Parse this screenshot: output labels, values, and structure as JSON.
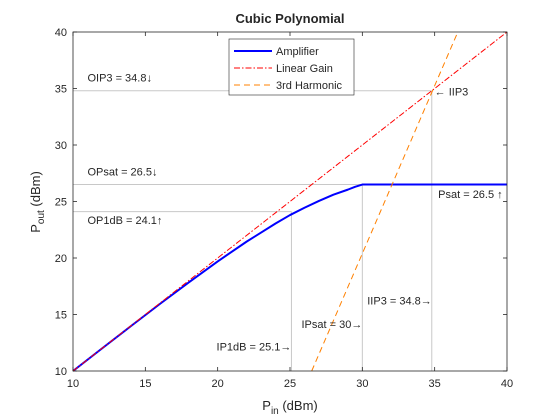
{
  "chart_data": {
    "type": "line",
    "title": "Cubic Polynomial",
    "xlabel": {
      "main": "P",
      "sub": "in",
      "rest": " (dBm)"
    },
    "ylabel": {
      "main": "P",
      "sub": "out",
      "rest": " (dBm)"
    },
    "xlim": [
      10,
      40
    ],
    "ylim": [
      10,
      40
    ],
    "xticks": [
      "10",
      "15",
      "20",
      "25",
      "30",
      "35",
      "40"
    ],
    "yticks": [
      "10",
      "15",
      "20",
      "25",
      "30",
      "35",
      "40"
    ],
    "grid": false,
    "legend_position": "top-center",
    "series": [
      {
        "name": "Amplifier",
        "color": "#0000ff",
        "style": "solid",
        "points": [
          [
            10,
            10
          ],
          [
            12,
            11.99
          ],
          [
            14,
            13.97
          ],
          [
            16,
            15.93
          ],
          [
            18,
            17.84
          ],
          [
            20,
            19.7
          ],
          [
            22,
            21.45
          ],
          [
            24,
            23.05
          ],
          [
            25,
            23.8
          ],
          [
            26,
            24.45
          ],
          [
            27,
            25.05
          ],
          [
            28,
            25.6
          ],
          [
            29,
            26.05
          ],
          [
            29.5,
            26.3
          ],
          [
            30,
            26.5
          ],
          [
            40,
            26.5
          ]
        ]
      },
      {
        "name": "Linear Gain",
        "color": "#ff0000",
        "style": "dashdot",
        "points": [
          [
            10,
            10
          ],
          [
            40,
            40
          ]
        ]
      },
      {
        "name": "3rd Harmonic",
        "color": "#ff8000",
        "style": "dashed",
        "points": [
          [
            26.5,
            10
          ],
          [
            36.6,
            40
          ]
        ]
      }
    ],
    "reference_lines": {
      "color": "#c8c8c8",
      "vertical": [
        {
          "x": 25.1,
          "y_from": 10,
          "y_to": 24.1
        },
        {
          "x": 30,
          "y_from": 10,
          "y_to": 26.5
        },
        {
          "x": 34.8,
          "y_from": 10,
          "y_to": 34.8
        }
      ],
      "horizontal": [
        {
          "y": 24.1,
          "x_from": 10,
          "x_to": 25.1
        },
        {
          "y": 26.5,
          "x_from": 10,
          "x_to": 40
        },
        {
          "y": 34.8,
          "x_from": 10,
          "x_to": 34.8
        }
      ]
    },
    "annotations": [
      {
        "text": "OIP3 = 34.8↓",
        "x": 11,
        "y": 35.6,
        "anchor": "start"
      },
      {
        "text": "OPsat = 26.5↓",
        "x": 11,
        "y": 27.3,
        "anchor": "start"
      },
      {
        "text": "OP1dB = 24.1↑",
        "x": 11,
        "y": 23.0,
        "anchor": "start"
      },
      {
        "text": "← IIP3",
        "x": 35.0,
        "y": 34.4,
        "anchor": "start"
      },
      {
        "text": "Psat = 26.5 ↑",
        "x": 39.7,
        "y": 25.3,
        "anchor": "end"
      },
      {
        "text": "IIP3 = 34.8→",
        "x": 34.8,
        "y": 15.9,
        "anchor": "end"
      },
      {
        "text": "IPsat = 30→",
        "x": 30.0,
        "y": 13.8,
        "anchor": "end"
      },
      {
        "text": "IP1dB = 25.1→",
        "x": 25.1,
        "y": 11.8,
        "anchor": "end"
      }
    ]
  }
}
